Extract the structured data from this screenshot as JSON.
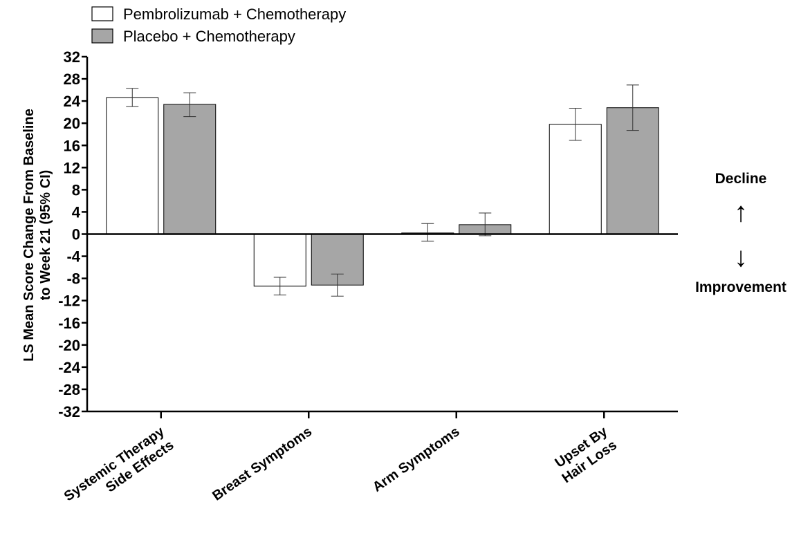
{
  "chart_data": {
    "type": "bar",
    "categories": [
      [
        "Systemic Therapy",
        "Side Effects"
      ],
      [
        "Breast Symptoms"
      ],
      [
        "Arm Symptoms"
      ],
      [
        "Upset By",
        "Hair Loss"
      ]
    ],
    "series": [
      {
        "name": "Pembrolizumab + Chemotherapy",
        "color": "#ffffff",
        "values": [
          24.6,
          -9.4,
          0.2,
          19.8
        ],
        "ci_low": [
          23.0,
          -11.0,
          -1.3,
          16.9
        ],
        "ci_high": [
          26.3,
          -7.8,
          1.9,
          22.7
        ]
      },
      {
        "name": "Placebo + Chemotherapy",
        "color": "#a6a6a6",
        "values": [
          23.4,
          -9.2,
          1.7,
          22.8
        ],
        "ci_low": [
          21.2,
          -11.2,
          -0.3,
          18.7
        ],
        "ci_high": [
          25.5,
          -7.2,
          3.8,
          26.9
        ]
      }
    ],
    "ylabel_lines": [
      "LS Mean Score Change From Baseline",
      "to Week 21 (95% CI)"
    ],
    "ylim": [
      -32,
      32
    ],
    "yticks": [
      32,
      28,
      24,
      20,
      16,
      12,
      8,
      4,
      0,
      -4,
      -8,
      -12,
      -16,
      -20,
      -24,
      -28,
      -32
    ],
    "legend_position": "top-left",
    "grid": false,
    "annotations": {
      "up_label": "Decline",
      "up_arrow": "↑",
      "down_arrow": "↓",
      "down_label": "Improvement"
    }
  }
}
